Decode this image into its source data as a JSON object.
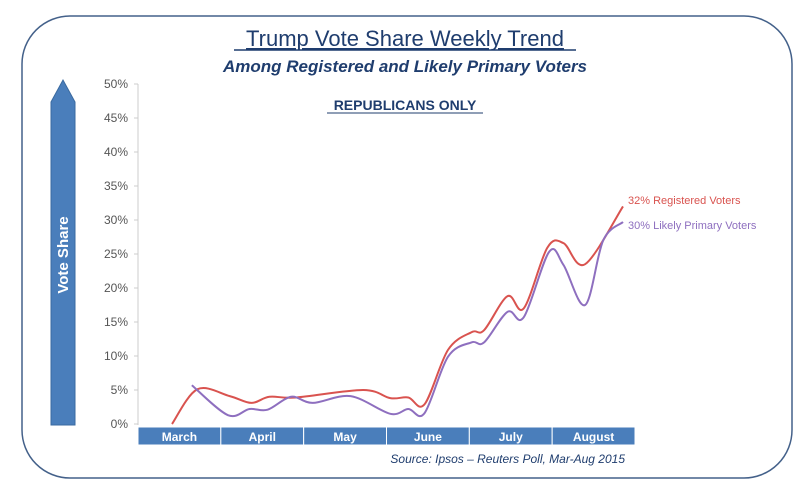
{
  "chart_data": {
    "type": "line",
    "title": "Trump Vote Share Weekly Trend",
    "subtitle": "Among Registered and Likely Primary Voters",
    "annotation": "REPUBLICANS ONLY",
    "ylabel": "Vote Share",
    "xlabel": "",
    "ylim": [
      0,
      50
    ],
    "yticks": [
      "0%",
      "5%",
      "10%",
      "15%",
      "20%",
      "25%",
      "30%",
      "35%",
      "40%",
      "45%",
      "50%"
    ],
    "xlim_weeks": [
      0,
      25
    ],
    "months": [
      "March",
      "April",
      "May",
      "June",
      "July",
      "August"
    ],
    "source": "Source: Ipsos – Reuters Poll, Mar-Aug 2015",
    "series": [
      {
        "name": "Registered Voters",
        "end_label": "32% Registered Voters",
        "color": "#d9534f",
        "points": [
          [
            0,
            0
          ],
          [
            1.4,
            5.1
          ],
          [
            3.2,
            4.1
          ],
          [
            4.4,
            3.1
          ],
          [
            5.4,
            4
          ],
          [
            6.9,
            3.9
          ],
          [
            10.6,
            5
          ],
          [
            12.1,
            3.8
          ],
          [
            13.1,
            3.9
          ],
          [
            14,
            2.9
          ],
          [
            15.3,
            10.9
          ],
          [
            16.6,
            13.5
          ],
          [
            17.3,
            13.8
          ],
          [
            18.6,
            18.8
          ],
          [
            19.5,
            17
          ],
          [
            20.8,
            25.9
          ],
          [
            21.7,
            26.6
          ],
          [
            22.9,
            23.5
          ],
          [
            25,
            32
          ]
        ]
      },
      {
        "name": "Likely Primary Voters",
        "end_label": "30% Likely Primary Voters",
        "color": "#8e6fbf",
        "points": [
          [
            1.1,
            5.7
          ],
          [
            3.1,
            1.3
          ],
          [
            4.3,
            2.2
          ],
          [
            5.3,
            2.1
          ],
          [
            6.6,
            4
          ],
          [
            7.8,
            3.1
          ],
          [
            9.9,
            4.1
          ],
          [
            12.1,
            1.5
          ],
          [
            13.1,
            2.2
          ],
          [
            14,
            1.6
          ],
          [
            15.3,
            9.9
          ],
          [
            16.6,
            12
          ],
          [
            17.3,
            12
          ],
          [
            18.6,
            16.5
          ],
          [
            19.5,
            15.7
          ],
          [
            20.9,
            25.3
          ],
          [
            21.7,
            23.4
          ],
          [
            22.9,
            17.5
          ],
          [
            23.9,
            27
          ],
          [
            25,
            29.7
          ]
        ]
      }
    ],
    "colors": {
      "accent": "#4a7ebb",
      "title": "#1f3d6e",
      "frame": "#44618a"
    }
  }
}
